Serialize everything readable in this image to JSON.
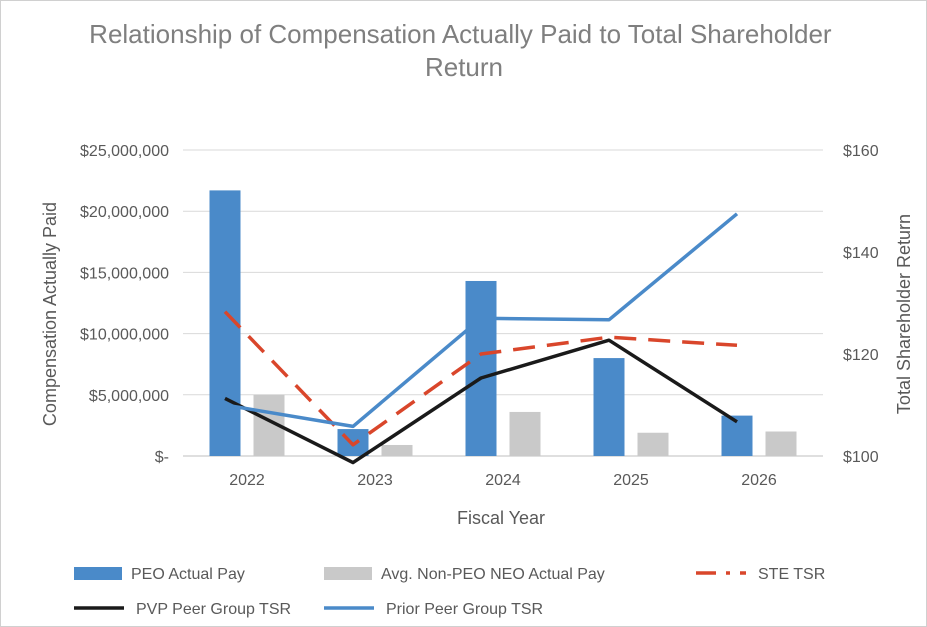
{
  "chart_data": {
    "type": "bar",
    "title": "Relationship of Compensation Actually Paid to Total Shareholder Return",
    "xlabel": "Fiscal Year",
    "ylabel": "Compensation Actually Paid",
    "y2label": "Total Shareholder Return",
    "categories": [
      "2022",
      "2023",
      "2024",
      "2025",
      "2026"
    ],
    "ylim": [
      0,
      25000000
    ],
    "y2lim": [
      100,
      160
    ],
    "yticks": [
      "$-",
      "$5,000,000",
      "$10,000,000",
      "$15,000,000",
      "$20,000,000",
      "$25,000,000"
    ],
    "y2ticks": [
      "$100",
      "$120",
      "$140",
      "$160"
    ],
    "grid": true,
    "legend_position": "bottom",
    "bar_series": [
      {
        "name": "PEO Actual Pay",
        "color": "#4a8ac9",
        "values": [
          21700000,
          2200000,
          14300000,
          8000000,
          3300000
        ]
      },
      {
        "name": "Avg. Non-PEO NEO Actual Pay",
        "color": "#c9c9c9",
        "values": [
          5000000,
          900000,
          3600000,
          1900000,
          2000000
        ]
      }
    ],
    "line_series": [
      {
        "name": "STE TSR",
        "color": "#d9462b",
        "style": "dashed",
        "values": [
          128.3,
          102.2,
          120.0,
          123.3,
          121.7
        ]
      },
      {
        "name": "PVP Peer Group TSR",
        "color": "#1a1a1a",
        "style": "solid",
        "values": [
          111.3,
          98.7,
          115.3,
          122.7,
          106.7
        ]
      },
      {
        "name": "Prior Peer Group TSR",
        "color": "#4a8ac9",
        "style": "solid",
        "values": [
          110.0,
          105.8,
          127.0,
          126.7,
          147.5
        ]
      }
    ]
  }
}
